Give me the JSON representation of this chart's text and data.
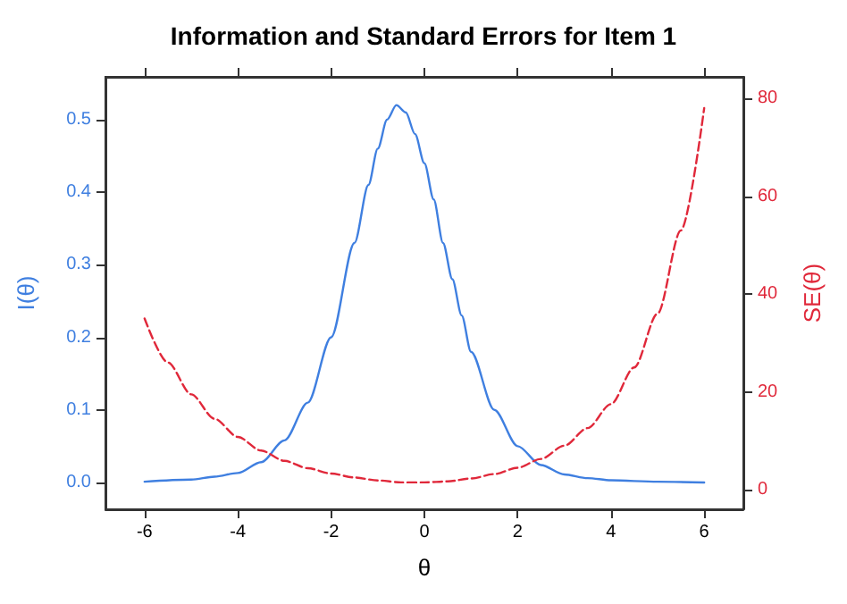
{
  "chart_data": {
    "type": "line",
    "title": "Information and Standard Errors for Item 1",
    "xlabel": "θ",
    "ylabel": "I(θ)",
    "y2label": "SE(θ)",
    "xlim": [
      -6.84,
      6.84
    ],
    "xticks": [
      -6,
      -4,
      -2,
      0,
      2,
      4,
      6
    ],
    "ylim": [
      -0.037,
      0.559
    ],
    "yticks": [
      {
        "value": 0,
        "label": "0.0"
      },
      0.1,
      0.2,
      0.3,
      0.4,
      0.5
    ],
    "y2lim": [
      -4,
      84.4
    ],
    "y2ticks": [
      0,
      20,
      40,
      60,
      80
    ],
    "grid": false,
    "marker": "none",
    "series": [
      {
        "color": "#3f7fe0",
        "line_style": "solid",
        "x": [
          -6,
          -5,
          -4.5,
          -4,
          -3.5,
          -3,
          -2.5,
          -2,
          -1.5,
          -1.2,
          -1,
          -0.8,
          -0.6,
          -0.4,
          -0.2,
          0,
          0.2,
          0.4,
          0.6,
          0.8,
          1,
          1.5,
          2,
          2.5,
          3,
          3.5,
          4,
          5,
          6
        ],
        "values": [
          0.001,
          0.004,
          0.008,
          0.013,
          0.028,
          0.058,
          0.11,
          0.2,
          0.33,
          0.41,
          0.46,
          0.5,
          0.52,
          0.51,
          0.48,
          0.44,
          0.39,
          0.33,
          0.28,
          0.23,
          0.18,
          0.1,
          0.05,
          0.024,
          0.011,
          0.006,
          0.003,
          0.001,
          0.0
        ]
      },
      {
        "color": "#e0283a",
        "line_style": "dashed",
        "axis": "y2",
        "x": [
          -6,
          -5.5,
          -5,
          -4.5,
          -4,
          -3.5,
          -3,
          -2.5,
          -2,
          -1.5,
          -1,
          -0.5,
          0,
          0.5,
          1,
          1.5,
          2,
          2.5,
          3,
          3.5,
          4,
          4.5,
          5,
          5.5,
          6
        ],
        "values": [
          35,
          26,
          19.5,
          14.5,
          10.8,
          8,
          5.9,
          4.4,
          3.3,
          2.5,
          1.9,
          1.5,
          1.5,
          1.7,
          2.3,
          3.2,
          4.5,
          6.3,
          9,
          12.6,
          17.5,
          25,
          36,
          53,
          78
        ]
      }
    ]
  }
}
